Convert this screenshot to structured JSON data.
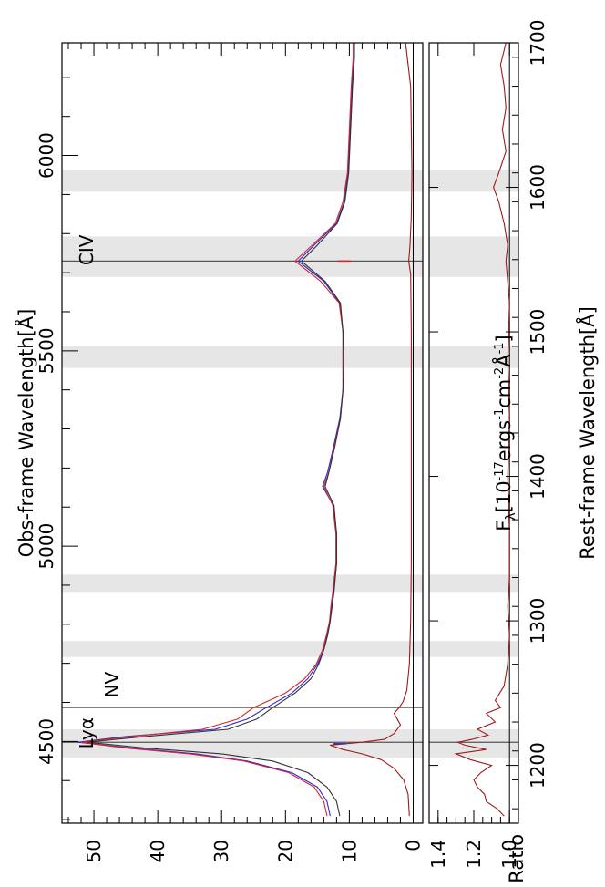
{
  "chart_data": [
    {
      "type": "line",
      "panel": "top",
      "xlabel": "F_λ[10^-17ergs^-1cm^-2Å^-1]",
      "xlabel_parts": [
        "F",
        "λ",
        "[10",
        "-17",
        "ergs",
        "-1",
        "cm",
        "-2",
        "Å",
        "-1",
        "]"
      ],
      "ylabel_bottom": "Rest-frame Wavelength[Å]",
      "ylabel_top": "Obs-frame Wavelength[Å]",
      "flux_ticks": [
        0,
        10,
        20,
        30,
        40,
        50
      ],
      "flux_tick_labels": [
        "0",
        "10",
        "20",
        "30",
        "40",
        "50"
      ],
      "flux_range": [
        -1.5,
        55
      ],
      "rest_range": [
        1160,
        1700
      ],
      "rest_ticks": [
        1200,
        1300,
        1400,
        1500,
        1600,
        1700
      ],
      "rest_tick_labels": [
        "1200",
        "1300",
        "1400",
        "1500",
        "1600",
        "1700"
      ],
      "obs_ticks": [
        4500,
        5000,
        5500,
        6000
      ],
      "obs_tick_labels": [
        "4500",
        "5000",
        "5500",
        "6000"
      ],
      "obs_per_rest": 3.699,
      "line_labels": [
        {
          "text": "Lyα",
          "rest": 1216
        },
        {
          "text": "NV",
          "rest": 1240
        },
        {
          "text": "CIV",
          "rest": 1549
        }
      ],
      "line_markers_rest": [
        1216,
        1240,
        1549
      ],
      "shaded_bands_rest": [
        [
          1205,
          1225
        ],
        [
          1275,
          1286
        ],
        [
          1320,
          1332
        ],
        [
          1475,
          1490
        ],
        [
          1538,
          1566
        ],
        [
          1597,
          1612
        ]
      ],
      "marker_segments": [
        {
          "rest": 1215,
          "flux_range": [
            10.5,
            12.5
          ],
          "color": "#3b2fb5"
        },
        {
          "rest": 1549,
          "flux_range": [
            9.8,
            11.8
          ],
          "color": "#d9242a"
        }
      ],
      "series": [
        {
          "color": "#2a2ad8",
          "x": [
            1165,
            1175,
            1185,
            1195,
            1203,
            1208,
            1212,
            1216,
            1220,
            1225,
            1232,
            1240,
            1250,
            1260,
            1270,
            1280,
            1290,
            1300,
            1310,
            1320,
            1340,
            1360,
            1380,
            1393,
            1403,
            1420,
            1440,
            1460,
            1480,
            1500,
            1520,
            1535,
            1549,
            1560,
            1575,
            1590,
            1610,
            1630,
            1650,
            1670,
            1690,
            1700
          ],
          "y": [
            13,
            13.5,
            15,
            19,
            26,
            34,
            44,
            52.5,
            45,
            31,
            26,
            23,
            19,
            16.5,
            15,
            14,
            13.5,
            13,
            12.8,
            12.5,
            12,
            12,
            12.5,
            14.2,
            13.4,
            12.5,
            11.5,
            11,
            11,
            11,
            11.5,
            14,
            18,
            15.5,
            12,
            10.8,
            10.2,
            10,
            9.8,
            9.6,
            9.3,
            9.3
          ]
        },
        {
          "color": "#d9242a",
          "x": [
            1165,
            1175,
            1185,
            1195,
            1203,
            1208,
            1212,
            1216,
            1220,
            1225,
            1232,
            1240,
            1250,
            1260,
            1270,
            1280,
            1290,
            1300,
            1310,
            1320,
            1340,
            1360,
            1380,
            1393,
            1403,
            1420,
            1440,
            1460,
            1480,
            1500,
            1520,
            1535,
            1549,
            1560,
            1575,
            1590,
            1610,
            1630,
            1650,
            1670,
            1690,
            1700
          ],
          "y": [
            13.5,
            14,
            15.5,
            19.5,
            26.5,
            35,
            45,
            52,
            44,
            33,
            27.5,
            25,
            20,
            17,
            15.2,
            14.2,
            13.6,
            13.1,
            12.9,
            12.6,
            12.1,
            12.1,
            12.6,
            14,
            13.2,
            12.4,
            11.4,
            11,
            11,
            11,
            11.6,
            14.5,
            18.5,
            15.8,
            12.2,
            11,
            10.3,
            10.1,
            9.9,
            9.7,
            9.4,
            9.4
          ]
        },
        {
          "color": "#333333",
          "x": [
            1165,
            1175,
            1185,
            1195,
            1203,
            1208,
            1212,
            1216,
            1220,
            1225,
            1232,
            1240,
            1250,
            1260,
            1270,
            1280,
            1290,
            1300,
            1310,
            1320,
            1340,
            1360,
            1380,
            1393,
            1403,
            1420,
            1440,
            1460,
            1480,
            1500,
            1520,
            1535,
            1549,
            1560,
            1575,
            1590,
            1610,
            1630,
            1650,
            1670,
            1690,
            1700
          ],
          "y": [
            11.5,
            12,
            13.5,
            16.5,
            22,
            30,
            42,
            51,
            42,
            29,
            24.5,
            22,
            18.5,
            16,
            14.8,
            14,
            13.4,
            13,
            12.7,
            12.4,
            12,
            12,
            12.4,
            13.8,
            13.2,
            12.3,
            11.4,
            11,
            10.9,
            11,
            11.4,
            13.8,
            17.5,
            15,
            11.9,
            10.7,
            10.1,
            9.9,
            9.7,
            9.5,
            9.2,
            9.2
          ]
        },
        {
          "color": "#9b1b1b",
          "x": [
            1165,
            1180,
            1190,
            1198,
            1204,
            1208,
            1211,
            1214,
            1216,
            1218,
            1222,
            1228,
            1236,
            1240,
            1244,
            1252,
            1270,
            1300,
            1340,
            1400,
            1450,
            1500,
            1540,
            1549,
            1560,
            1580,
            1610,
            1640,
            1670,
            1700
          ],
          "y": [
            0.6,
            0.8,
            1.5,
            3,
            5,
            8,
            11,
            13,
            8,
            4.5,
            3,
            2,
            3,
            2.2,
            1.6,
            1,
            0.6,
            0.4,
            0.3,
            0.3,
            0.3,
            0.3,
            0.4,
            0.7,
            0.5,
            0.3,
            0.2,
            0.3,
            0.4,
            1.2
          ]
        }
      ]
    },
    {
      "type": "line",
      "panel": "bottom",
      "xlabel": "Flux Ratio",
      "ratio_ticks": [
        1.0,
        1.2,
        1.4
      ],
      "ratio_tick_labels": [
        "1.0",
        "1.2",
        "1.4"
      ],
      "ratio_range": [
        0.95,
        1.45
      ],
      "reference_level": 1.0,
      "line_markers_rest": [
        1216
      ],
      "series": [
        {
          "color": "#9b1b1b",
          "x": [
            1165,
            1170,
            1175,
            1180,
            1185,
            1190,
            1195,
            1200,
            1204,
            1208,
            1211,
            1214,
            1216,
            1218,
            1221,
            1225,
            1230,
            1236,
            1240,
            1245,
            1255,
            1270,
            1290,
            1310,
            1330,
            1360,
            1400,
            1440,
            1480,
            1520,
            1549,
            1560,
            1575,
            1590,
            1600,
            1610,
            1625,
            1640,
            1655,
            1670,
            1685,
            1700
          ],
          "y": [
            1.03,
            1.07,
            1.13,
            1.14,
            1.18,
            1.2,
            1.16,
            1.1,
            1.22,
            1.3,
            1.13,
            1.25,
            1.29,
            1.21,
            1.12,
            1.18,
            1.08,
            1.13,
            1.05,
            1.08,
            1.03,
            1.01,
            1.0,
            1.01,
            1.0,
            1.0,
            1.01,
            1.0,
            1.01,
            1.0,
            1.02,
            1.01,
            1.03,
            1.06,
            1.09,
            1.06,
            1.02,
            1.04,
            1.02,
            1.03,
            1.05,
            1.02
          ]
        }
      ]
    }
  ]
}
